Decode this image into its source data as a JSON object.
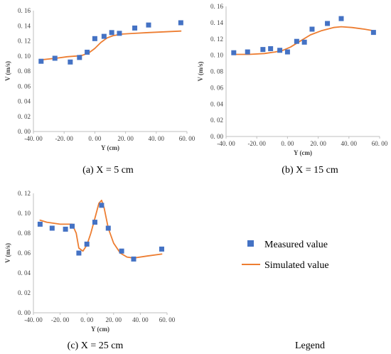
{
  "figure": {
    "legend_caption": "Legend",
    "legend": [
      {
        "label": "Measured value",
        "color": "#4472C4",
        "marker": "square"
      },
      {
        "label": "Simulated value",
        "color": "#ED7D31",
        "marker": "line"
      }
    ]
  },
  "chart_data": [
    {
      "type": "scatter",
      "caption": "(a) X = 5 cm",
      "xlabel": "Y (cm)",
      "ylabel": "V (m/s)",
      "xlim": [
        -40,
        60
      ],
      "ylim": [
        0,
        0.16
      ],
      "x_ticks": [
        "-40. 00",
        "-20. 00",
        "0. 00",
        "20. 00",
        "40. 00",
        "60. 00"
      ],
      "y_ticks": [
        "0. 00",
        "0. 02",
        "0. 04",
        "0. 06",
        "0. 08",
        "0. 10",
        "0. 12",
        "0. 14",
        "0. 16"
      ],
      "grid": false,
      "series": [
        {
          "name": "Measured value",
          "kind": "markers",
          "color": "#4472C4",
          "x": [
            -35,
            -26,
            -16,
            -10,
            -5,
            0,
            6,
            11,
            16,
            26,
            35,
            56
          ],
          "y": [
            0.093,
            0.097,
            0.092,
            0.098,
            0.105,
            0.123,
            0.126,
            0.131,
            0.13,
            0.137,
            0.141,
            0.144
          ]
        },
        {
          "name": "Simulated value",
          "kind": "line",
          "color": "#ED7D31",
          "x": [
            -35,
            -25,
            -18,
            -12,
            -8,
            -4,
            0,
            4,
            8,
            12,
            18,
            26,
            35,
            45,
            56
          ],
          "y": [
            0.095,
            0.097,
            0.099,
            0.1,
            0.101,
            0.104,
            0.11,
            0.118,
            0.124,
            0.127,
            0.129,
            0.13,
            0.131,
            0.132,
            0.133
          ]
        }
      ]
    },
    {
      "type": "scatter",
      "caption": "(b) X = 15 cm",
      "xlabel": "Y (cm)",
      "ylabel": "V (m/s)",
      "xlim": [
        -40,
        60
      ],
      "ylim": [
        0,
        0.16
      ],
      "x_ticks": [
        "-40. 00",
        "-20. 00",
        "0. 00",
        "20. 00",
        "40. 00",
        "60. 00"
      ],
      "y_ticks": [
        "0. 00",
        "0. 02",
        "0. 04",
        "0. 06",
        "0. 08",
        "0. 10",
        "0. 12",
        "0. 14",
        "0. 16"
      ],
      "grid": false,
      "series": [
        {
          "name": "Measured value",
          "kind": "markers",
          "color": "#4472C4",
          "x": [
            -35,
            -26,
            -16,
            -11,
            -5,
            0,
            6,
            11,
            16,
            26,
            35,
            56
          ],
          "y": [
            0.103,
            0.104,
            0.107,
            0.108,
            0.106,
            0.104,
            0.117,
            0.116,
            0.132,
            0.139,
            0.145,
            0.128
          ]
        },
        {
          "name": "Simulated value",
          "kind": "line",
          "color": "#ED7D31",
          "x": [
            -35,
            -25,
            -15,
            -8,
            -3,
            2,
            8,
            15,
            22,
            30,
            35,
            42,
            50,
            56
          ],
          "y": [
            0.101,
            0.101,
            0.102,
            0.104,
            0.106,
            0.11,
            0.117,
            0.125,
            0.13,
            0.134,
            0.135,
            0.134,
            0.132,
            0.13
          ]
        }
      ]
    },
    {
      "type": "scatter",
      "caption": "(c) X = 25 cm",
      "xlabel": "Y (cm)",
      "ylabel": "V (m/s)",
      "xlim": [
        -40,
        60
      ],
      "ylim": [
        0,
        0.12
      ],
      "x_ticks": [
        "-40. 00",
        "-20. 00",
        "0. 00",
        "20. 00",
        "40. 00",
        "60. 00"
      ],
      "y_ticks": [
        "0. 00",
        "0. 02",
        "0. 04",
        "0. 06",
        "0. 08",
        "0. 10",
        "0. 12"
      ],
      "grid": false,
      "series": [
        {
          "name": "Measured value",
          "kind": "markers",
          "color": "#4472C4",
          "x": [
            -35,
            -26,
            -16,
            -11,
            -6,
            0,
            6,
            11,
            16,
            26,
            35,
            56
          ],
          "y": [
            0.089,
            0.085,
            0.084,
            0.087,
            0.06,
            0.069,
            0.091,
            0.108,
            0.085,
            0.062,
            0.054,
            0.064
          ]
        },
        {
          "name": "Simulated value",
          "kind": "line",
          "color": "#ED7D31",
          "x": [
            -35,
            -30,
            -25,
            -20,
            -15,
            -11,
            -8,
            -6,
            -3,
            0,
            3,
            6,
            9,
            11,
            13,
            16,
            20,
            25,
            30,
            35,
            45,
            56
          ],
          "y": [
            0.093,
            0.091,
            0.09,
            0.089,
            0.089,
            0.089,
            0.08,
            0.065,
            0.062,
            0.068,
            0.08,
            0.095,
            0.11,
            0.113,
            0.105,
            0.085,
            0.07,
            0.06,
            0.056,
            0.055,
            0.057,
            0.059
          ]
        }
      ]
    }
  ]
}
